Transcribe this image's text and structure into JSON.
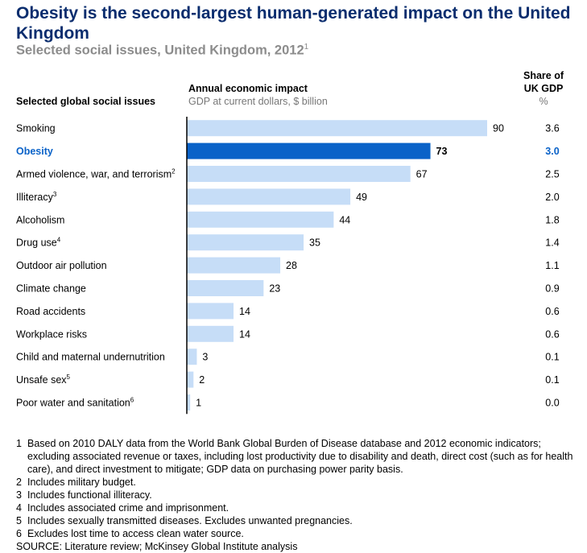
{
  "title": "Obesity is the second-largest human-generated impact on the United Kingdom",
  "subtitle": "Selected social issues, United Kingdom, 2012",
  "subtitle_note": "1",
  "headers": {
    "issues": "Selected global social issues",
    "impact": "Annual economic impact",
    "impact_unit": "GDP at current dollars, $ billion",
    "share_line1": "Share of",
    "share_line2": "UK GDP",
    "share_unit": "%"
  },
  "colors": {
    "bar": "#c6ddf7",
    "highlight": "#0a62c8",
    "title": "#0a2d6e",
    "axis": "#000000"
  },
  "chart_data": {
    "type": "bar",
    "orientation": "horizontal",
    "categories": [
      "Smoking",
      "Obesity",
      "Armed violence, war, and terrorism",
      "Illiteracy",
      "Alcoholism",
      "Drug use",
      "Outdoor air pollution",
      "Climate change",
      "Road accidents",
      "Workplace risks",
      "Child and maternal undernutrition",
      "Unsafe sex",
      "Poor water and sanitation"
    ],
    "category_notes": [
      "",
      "",
      "2",
      "3",
      "",
      "4",
      "",
      "",
      "",
      "",
      "",
      "5",
      "6"
    ],
    "values": [
      90,
      73,
      67,
      49,
      44,
      35,
      28,
      23,
      14,
      14,
      3,
      2,
      1
    ],
    "share_of_gdp": [
      "3.6",
      "3.0",
      "2.5",
      "2.0",
      "1.8",
      "1.4",
      "1.1",
      "0.9",
      "0.6",
      "0.6",
      "0.1",
      "0.1",
      "0.0"
    ],
    "highlight": "Obesity",
    "xlim": [
      0,
      90
    ]
  },
  "footnotes": [
    {
      "num": "1",
      "text": "Based on 2010 DALY data from the World Bank Global Burden of Disease database and 2012 economic indicators; excluding associated revenue or taxes, including lost productivity due to disability and death, direct cost (such as for health care), and direct investment to mitigate; GDP data on purchasing power parity basis."
    },
    {
      "num": "2",
      "text": "Includes military budget."
    },
    {
      "num": "3",
      "text": "Includes functional illiteracy."
    },
    {
      "num": "4",
      "text": "Includes associated crime and imprisonment."
    },
    {
      "num": "5",
      "text": "Includes sexually transmitted diseases. Excludes unwanted pregnancies."
    },
    {
      "num": "6",
      "text": "Excludes lost time to access clean water source."
    }
  ],
  "source": "SOURCE: Literature review; McKinsey Global Institute analysis"
}
